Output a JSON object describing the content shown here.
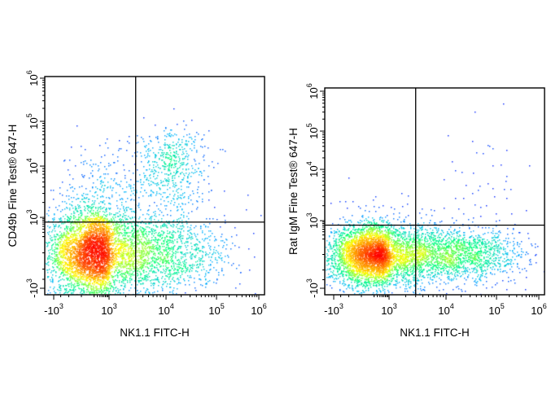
{
  "chart_data": [
    {
      "type": "scatter",
      "subtype": "flow-cytometry-density-plot",
      "xlabel": "NK1.1 FITC-H",
      "ylabel": "CD49b Fine Test® 647-H",
      "x_scale": "biexponential",
      "y_scale": "biexponential",
      "x_ticks": [
        {
          "value": -1000,
          "base": "-10",
          "exp": "3"
        },
        {
          "value": 1000,
          "base": "10",
          "exp": "3"
        },
        {
          "value": 10000,
          "base": "10",
          "exp": "4"
        },
        {
          "value": 100000,
          "base": "10",
          "exp": "5"
        },
        {
          "value": 1000000,
          "base": "10",
          "exp": "6"
        }
      ],
      "y_ticks": [
        {
          "value": -1000,
          "base": "-10",
          "exp": "3"
        },
        {
          "value": 1000,
          "base": "10",
          "exp": "3"
        },
        {
          "value": 10000,
          "base": "10",
          "exp": "4"
        },
        {
          "value": 100000,
          "base": "10",
          "exp": "5"
        },
        {
          "value": 1000000,
          "base": "10",
          "exp": "6"
        }
      ],
      "quadrant_gate": {
        "x": 3000,
        "y": 700
      },
      "populations": [
        {
          "x": 250,
          "y": 0,
          "sx": 0.55,
          "sy": 0.42,
          "n": 5200
        },
        {
          "x": 12000,
          "y": 12000,
          "sx": 0.22,
          "sy": 0.26,
          "n": 480
        },
        {
          "x": 1200,
          "y": 3000,
          "sx": 0.55,
          "sy": 0.35,
          "n": 260
        },
        {
          "x": 10000,
          "y": 0,
          "sx": 0.45,
          "sy": 0.35,
          "n": 800
        }
      ],
      "color_scale": [
        "#0000ff",
        "#00b4ff",
        "#00ff80",
        "#ffff00",
        "#ff8000",
        "#ff0000"
      ]
    },
    {
      "type": "scatter",
      "subtype": "flow-cytometry-density-plot",
      "xlabel": "NK1.1 FITC-H",
      "ylabel": "Rat IgM Fine Test® 647-H",
      "x_scale": "biexponential",
      "y_scale": "biexponential",
      "x_ticks": [
        {
          "value": -1000,
          "base": "-10",
          "exp": "3"
        },
        {
          "value": 1000,
          "base": "10",
          "exp": "3"
        },
        {
          "value": 10000,
          "base": "10",
          "exp": "4"
        },
        {
          "value": 100000,
          "base": "10",
          "exp": "5"
        },
        {
          "value": 1000000,
          "base": "10",
          "exp": "6"
        }
      ],
      "y_ticks": [
        {
          "value": -1000,
          "base": "-10",
          "exp": "3"
        },
        {
          "value": 1000,
          "base": "10",
          "exp": "3"
        },
        {
          "value": 10000,
          "base": "10",
          "exp": "4"
        },
        {
          "value": 100000,
          "base": "10",
          "exp": "5"
        },
        {
          "value": 1000000,
          "base": "10",
          "exp": "6"
        }
      ],
      "quadrant_gate": {
        "x": 3000,
        "y": 700
      },
      "populations": [
        {
          "x": 250,
          "y": 0,
          "sx": 0.55,
          "sy": 0.3,
          "n": 4800
        },
        {
          "x": 15000,
          "y": 0,
          "sx": 0.45,
          "sy": 0.25,
          "n": 1400
        },
        {
          "x": 50000,
          "y": 3000,
          "sx": 0.3,
          "sy": 0.55,
          "n": 45
        }
      ],
      "color_scale": [
        "#0000ff",
        "#00b4ff",
        "#00ff80",
        "#ffff00",
        "#ff8000",
        "#ff0000"
      ]
    }
  ]
}
